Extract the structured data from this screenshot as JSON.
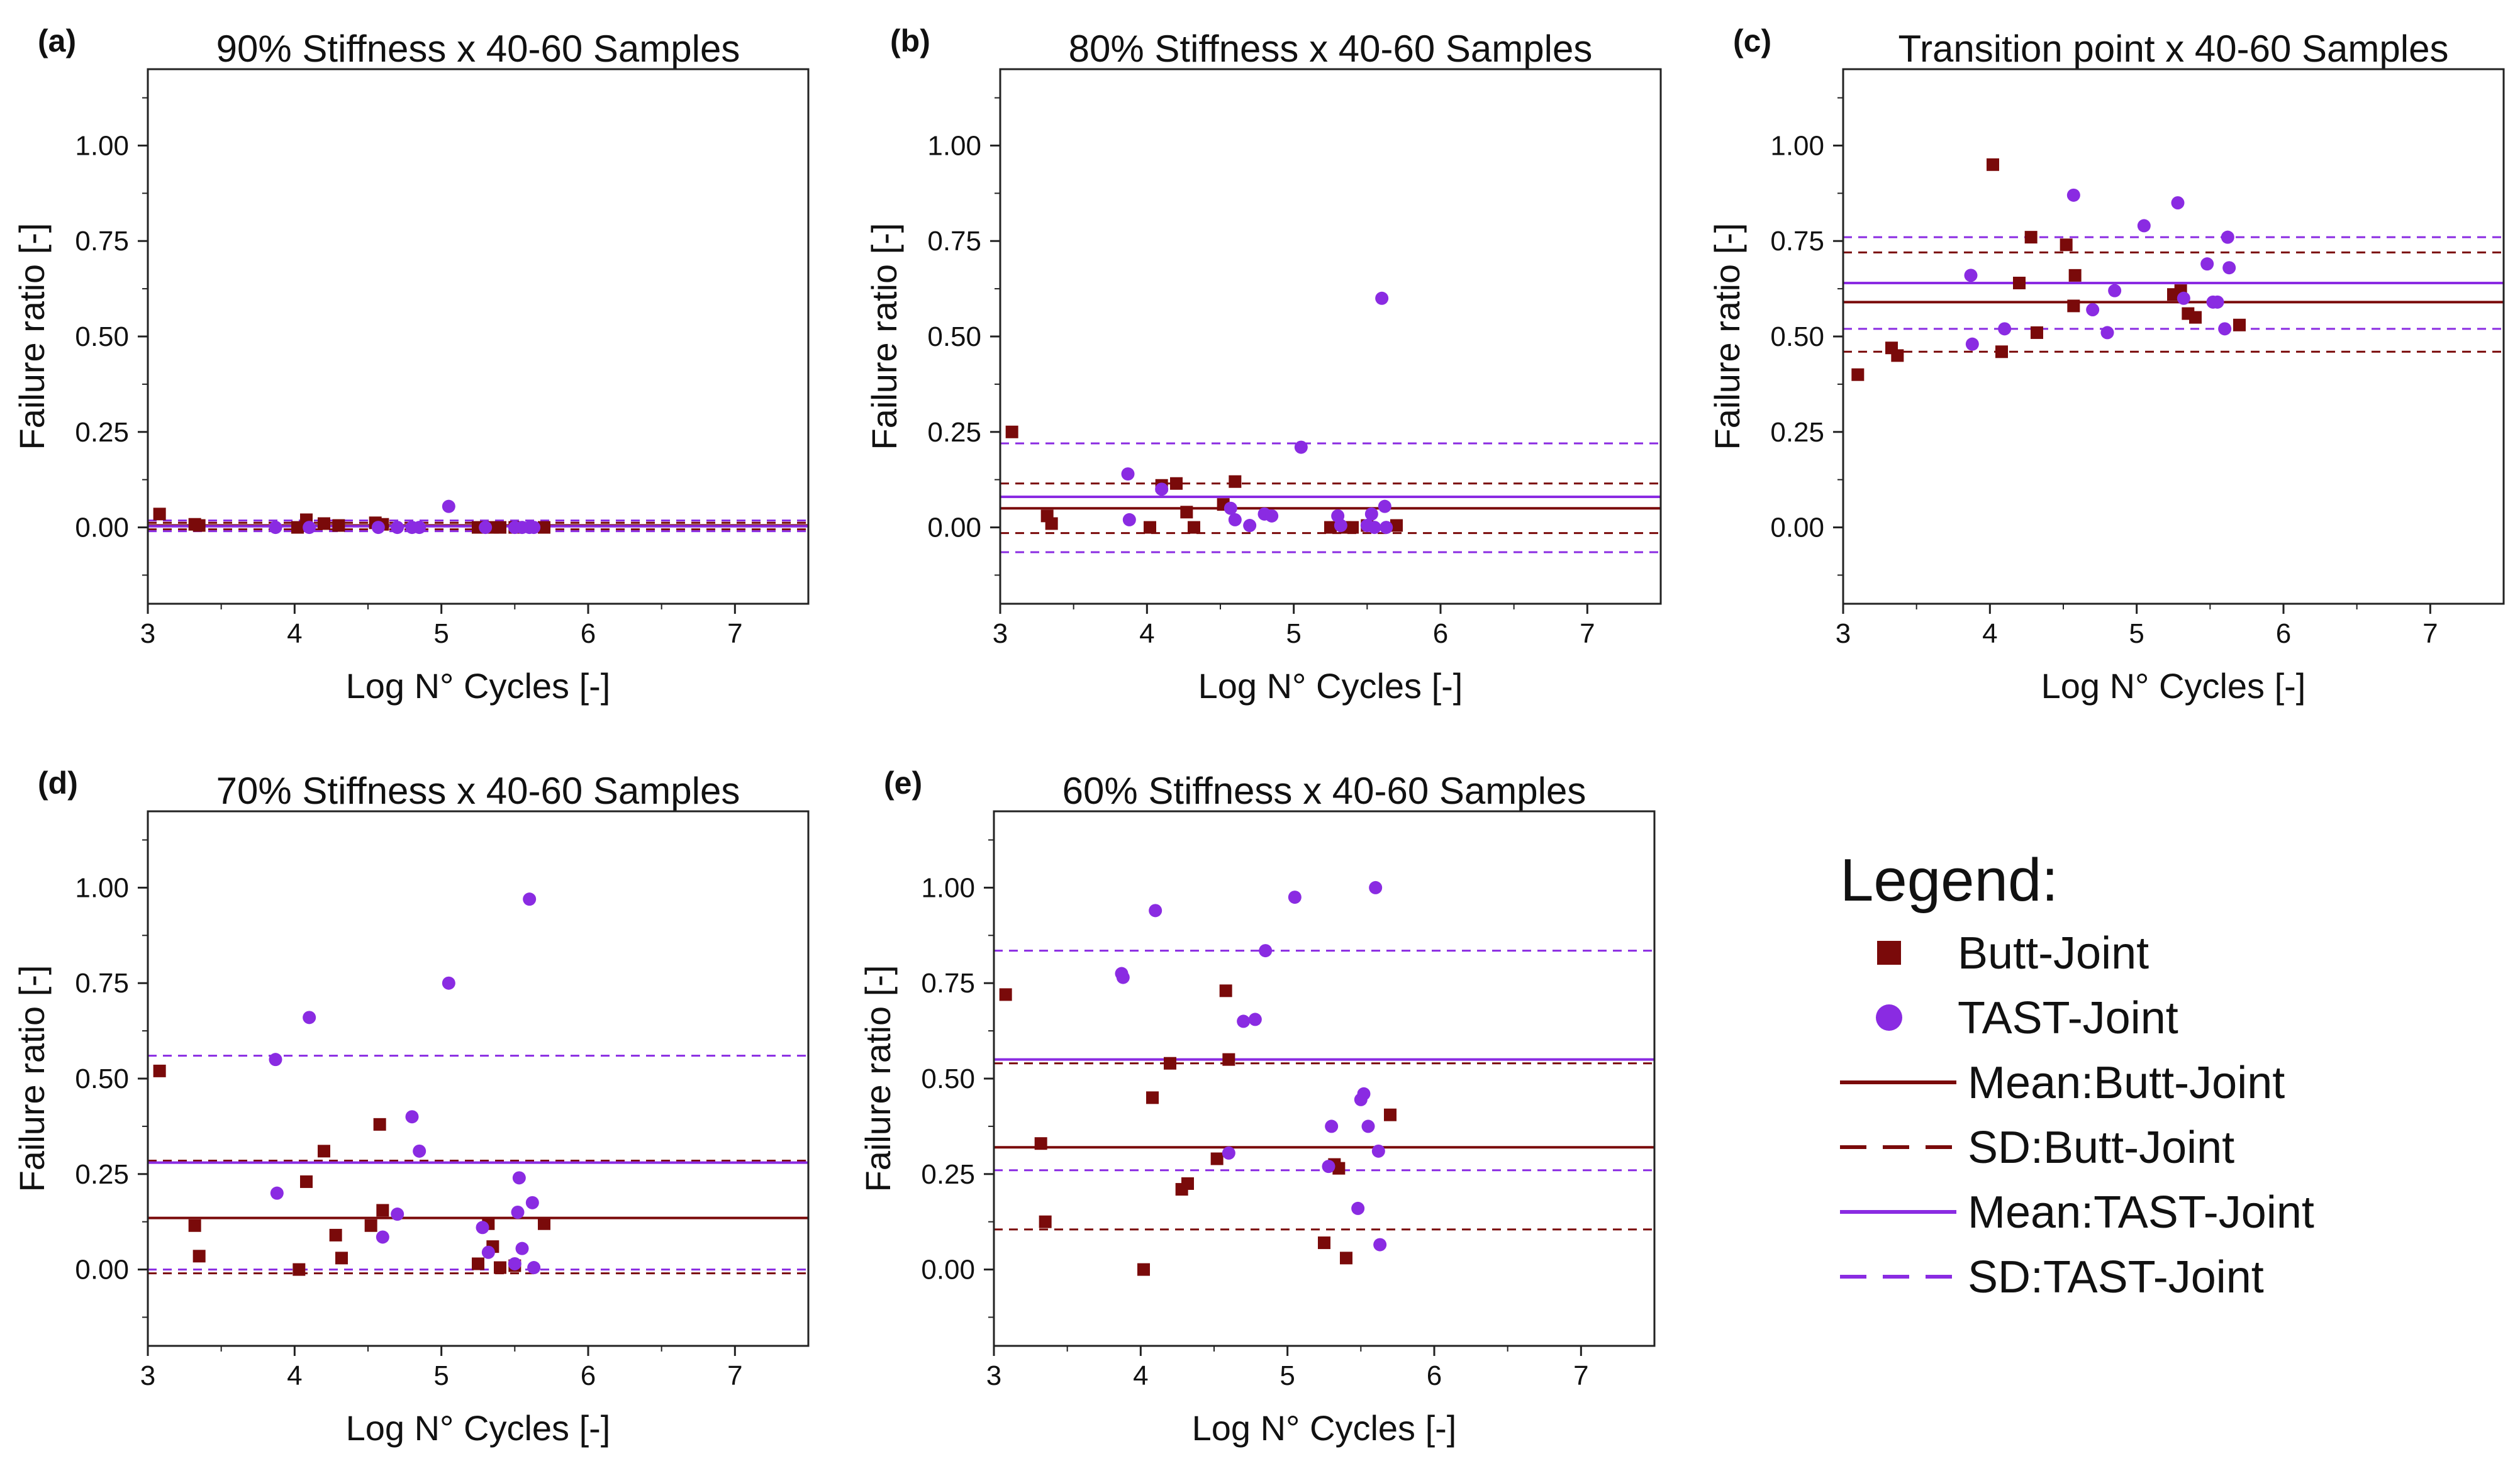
{
  "colors": {
    "butt": "#7a0a0a",
    "tast": "#8a2be2",
    "axis": "#222222"
  },
  "legend": {
    "title": "Legend:",
    "entries": [
      {
        "label": "Butt-Joint",
        "kind": "square",
        "series": "butt"
      },
      {
        "label": "TAST-Joint",
        "kind": "circle",
        "series": "tast"
      },
      {
        "label": "Mean:Butt-Joint",
        "kind": "solid",
        "series": "butt"
      },
      {
        "label": "SD:Butt-Joint",
        "kind": "dashed",
        "series": "butt"
      },
      {
        "label": "Mean:TAST-Joint",
        "kind": "solid",
        "series": "tast"
      },
      {
        "label": "SD:TAST-Joint",
        "kind": "dashed",
        "series": "tast"
      }
    ]
  },
  "chart_data": [
    {
      "id": "a",
      "panel_label": "(a)",
      "type": "scatter",
      "title": "90% Stiffness x 40-60 Samples",
      "xlabel": "Log N° Cycles [-]",
      "ylabel": "Failure ratio [-]",
      "xlim": [
        3,
        7.5
      ],
      "ylim": [
        -0.2,
        1.2
      ],
      "xticks": [
        "3",
        "4",
        "5",
        "6",
        "7"
      ],
      "yticks": [
        "0.00",
        "0.25",
        "0.50",
        "0.75",
        "1.00"
      ],
      "series": [
        {
          "name": "Butt-Joint",
          "marker": "square",
          "points": [
            [
              3.08,
              0.035
            ],
            [
              3.32,
              0.008
            ],
            [
              3.35,
              0.005
            ],
            [
              4.02,
              0.0
            ],
            [
              4.08,
              0.02
            ],
            [
              4.2,
              0.01
            ],
            [
              4.3,
              0.005
            ],
            [
              4.55,
              0.012
            ],
            [
              4.6,
              0.008
            ],
            [
              5.25,
              0.0
            ],
            [
              5.35,
              0.0
            ],
            [
              5.4,
              0.0
            ],
            [
              5.5,
              0.0
            ],
            [
              5.7,
              0.0
            ]
          ]
        },
        {
          "name": "TAST-Joint",
          "marker": "circle",
          "points": [
            [
              3.87,
              0.0
            ],
            [
              4.1,
              0.0
            ],
            [
              4.57,
              0.0
            ],
            [
              4.7,
              0.0
            ],
            [
              4.8,
              0.0
            ],
            [
              4.85,
              0.0
            ],
            [
              5.05,
              0.055
            ],
            [
              5.3,
              0.0
            ],
            [
              5.5,
              0.0
            ],
            [
              5.55,
              0.0
            ],
            [
              5.6,
              0.0
            ],
            [
              5.63,
              0.0
            ]
          ]
        }
      ],
      "lines": {
        "butt_mean": 0.005,
        "butt_sd": [
          -0.005,
          0.012
        ],
        "tast_mean": 0.003,
        "tast_sd": [
          -0.01,
          0.018
        ]
      }
    },
    {
      "id": "b",
      "panel_label": "(b)",
      "type": "scatter",
      "title": "80% Stiffness x 40-60 Samples",
      "xlabel": "Log N° Cycles [-]",
      "ylabel": "Failure ratio [-]",
      "xlim": [
        3,
        7.5
      ],
      "ylim": [
        -0.2,
        1.2
      ],
      "xticks": [
        "3",
        "4",
        "5",
        "6",
        "7"
      ],
      "yticks": [
        "0.00",
        "0.25",
        "0.50",
        "0.75",
        "1.00"
      ],
      "series": [
        {
          "name": "Butt-Joint",
          "marker": "square",
          "points": [
            [
              3.08,
              0.25
            ],
            [
              3.32,
              0.03
            ],
            [
              3.35,
              0.01
            ],
            [
              4.02,
              0.0
            ],
            [
              4.1,
              0.11
            ],
            [
              4.2,
              0.115
            ],
            [
              4.27,
              0.04
            ],
            [
              4.32,
              0.0
            ],
            [
              4.52,
              0.06
            ],
            [
              4.6,
              0.12
            ],
            [
              5.25,
              0.0
            ],
            [
              5.35,
              0.0
            ],
            [
              5.4,
              0.0
            ],
            [
              5.5,
              0.005
            ],
            [
              5.7,
              0.005
            ]
          ]
        },
        {
          "name": "TAST-Joint",
          "marker": "circle",
          "points": [
            [
              3.87,
              0.14
            ],
            [
              3.88,
              0.02
            ],
            [
              4.1,
              0.1
            ],
            [
              4.57,
              0.05
            ],
            [
              4.6,
              0.02
            ],
            [
              4.7,
              0.005
            ],
            [
              4.8,
              0.035
            ],
            [
              4.85,
              0.03
            ],
            [
              5.05,
              0.21
            ],
            [
              5.3,
              0.03
            ],
            [
              5.32,
              0.005
            ],
            [
              5.5,
              0.005
            ],
            [
              5.53,
              0.035
            ],
            [
              5.55,
              0.0
            ],
            [
              5.6,
              0.6
            ],
            [
              5.62,
              0.055
            ],
            [
              5.63,
              0.0
            ]
          ]
        }
      ],
      "lines": {
        "butt_mean": 0.05,
        "butt_sd": [
          -0.015,
          0.115
        ],
        "tast_mean": 0.08,
        "tast_sd": [
          -0.065,
          0.22
        ]
      }
    },
    {
      "id": "c",
      "panel_label": "(c)",
      "type": "scatter",
      "title": "Transition point x 40-60 Samples",
      "xlabel": "Log N° Cycles [-]",
      "ylabel": "Failure ratio [-]",
      "xlim": [
        3,
        7.5
      ],
      "ylim": [
        -0.2,
        1.2
      ],
      "xticks": [
        "3",
        "4",
        "5",
        "6",
        "7"
      ],
      "yticks": [
        "0.00",
        "0.25",
        "0.50",
        "0.75",
        "1.00"
      ],
      "series": [
        {
          "name": "Butt-Joint",
          "marker": "square",
          "points": [
            [
              3.1,
              0.4
            ],
            [
              3.33,
              0.47
            ],
            [
              3.37,
              0.45
            ],
            [
              4.02,
              0.95
            ],
            [
              4.08,
              0.46
            ],
            [
              4.2,
              0.64
            ],
            [
              4.28,
              0.76
            ],
            [
              4.32,
              0.51
            ],
            [
              4.52,
              0.74
            ],
            [
              4.57,
              0.58
            ],
            [
              4.58,
              0.66
            ],
            [
              5.25,
              0.61
            ],
            [
              5.3,
              0.62
            ],
            [
              5.35,
              0.56
            ],
            [
              5.4,
              0.55
            ],
            [
              5.7,
              0.53
            ]
          ]
        },
        {
          "name": "TAST-Joint",
          "marker": "circle",
          "points": [
            [
              3.87,
              0.66
            ],
            [
              3.88,
              0.48
            ],
            [
              4.1,
              0.52
            ],
            [
              4.57,
              0.87
            ],
            [
              4.7,
              0.57
            ],
            [
              4.8,
              0.51
            ],
            [
              4.85,
              0.62
            ],
            [
              5.05,
              0.79
            ],
            [
              5.28,
              0.85
            ],
            [
              5.32,
              0.6
            ],
            [
              5.48,
              0.69
            ],
            [
              5.52,
              0.59
            ],
            [
              5.55,
              0.59
            ],
            [
              5.6,
              0.52
            ],
            [
              5.62,
              0.76
            ],
            [
              5.63,
              0.68
            ]
          ]
        }
      ],
      "lines": {
        "butt_mean": 0.59,
        "butt_sd": [
          0.46,
          0.72
        ],
        "tast_mean": 0.64,
        "tast_sd": [
          0.52,
          0.76
        ]
      }
    },
    {
      "id": "d",
      "panel_label": "(d)",
      "type": "scatter",
      "title": "70% Stiffness x 40-60 Samples",
      "xlabel": "Log N° Cycles [-]",
      "ylabel": "Failure ratio [-]",
      "xlim": [
        3,
        7.5
      ],
      "ylim": [
        -0.2,
        1.2
      ],
      "xticks": [
        "3",
        "4",
        "5",
        "6",
        "7"
      ],
      "yticks": [
        "0.00",
        "0.25",
        "0.50",
        "0.75",
        "1.00"
      ],
      "series": [
        {
          "name": "Butt-Joint",
          "marker": "square",
          "points": [
            [
              3.08,
              0.52
            ],
            [
              3.32,
              0.115
            ],
            [
              3.35,
              0.035
            ],
            [
              4.03,
              0.0
            ],
            [
              4.08,
              0.23
            ],
            [
              4.2,
              0.31
            ],
            [
              4.28,
              0.09
            ],
            [
              4.32,
              0.03
            ],
            [
              4.52,
              0.115
            ],
            [
              4.58,
              0.38
            ],
            [
              4.6,
              0.155
            ],
            [
              5.25,
              0.015
            ],
            [
              5.32,
              0.12
            ],
            [
              5.35,
              0.06
            ],
            [
              5.4,
              0.005
            ],
            [
              5.5,
              0.01
            ],
            [
              5.7,
              0.12
            ]
          ]
        },
        {
          "name": "TAST-Joint",
          "marker": "circle",
          "points": [
            [
              3.87,
              0.55
            ],
            [
              3.88,
              0.2
            ],
            [
              4.1,
              0.66
            ],
            [
              4.6,
              0.085
            ],
            [
              4.7,
              0.145
            ],
            [
              4.8,
              0.4
            ],
            [
              4.85,
              0.31
            ],
            [
              5.05,
              0.75
            ],
            [
              5.28,
              0.11
            ],
            [
              5.32,
              0.045
            ],
            [
              5.5,
              0.015
            ],
            [
              5.52,
              0.15
            ],
            [
              5.53,
              0.24
            ],
            [
              5.55,
              0.055
            ],
            [
              5.6,
              0.97
            ],
            [
              5.62,
              0.175
            ],
            [
              5.63,
              0.005
            ]
          ]
        }
      ],
      "lines": {
        "butt_mean": 0.135,
        "butt_sd": [
          -0.01,
          0.285
        ],
        "tast_mean": 0.28,
        "tast_sd": [
          0.0,
          0.56
        ]
      }
    },
    {
      "id": "e",
      "panel_label": "(e)",
      "type": "scatter",
      "title": "60% Stiffness x 40-60 Samples",
      "xlabel": "Log N° Cycles [-]",
      "ylabel": "Failure ratio [-]",
      "xlim": [
        3,
        7.5
      ],
      "ylim": [
        -0.2,
        1.2
      ],
      "xticks": [
        "3",
        "4",
        "5",
        "6",
        "7"
      ],
      "yticks": [
        "0.00",
        "0.25",
        "0.50",
        "0.75",
        "1.00"
      ],
      "series": [
        {
          "name": "Butt-Joint",
          "marker": "square",
          "points": [
            [
              3.08,
              0.72
            ],
            [
              3.32,
              0.33
            ],
            [
              3.35,
              0.125
            ],
            [
              4.02,
              0.0
            ],
            [
              4.08,
              0.45
            ],
            [
              4.2,
              0.54
            ],
            [
              4.28,
              0.21
            ],
            [
              4.32,
              0.225
            ],
            [
              4.52,
              0.29
            ],
            [
              4.58,
              0.73
            ],
            [
              4.6,
              0.55
            ],
            [
              5.25,
              0.07
            ],
            [
              5.32,
              0.275
            ],
            [
              5.35,
              0.265
            ],
            [
              5.4,
              0.03
            ],
            [
              5.7,
              0.405
            ]
          ]
        },
        {
          "name": "TAST-Joint",
          "marker": "circle",
          "points": [
            [
              3.87,
              0.775
            ],
            [
              3.88,
              0.765
            ],
            [
              4.1,
              0.94
            ],
            [
              4.6,
              0.305
            ],
            [
              4.7,
              0.65
            ],
            [
              4.78,
              0.655
            ],
            [
              4.85,
              0.835
            ],
            [
              5.05,
              0.975
            ],
            [
              5.28,
              0.27
            ],
            [
              5.3,
              0.375
            ],
            [
              5.48,
              0.16
            ],
            [
              5.5,
              0.445
            ],
            [
              5.52,
              0.46
            ],
            [
              5.55,
              0.375
            ],
            [
              5.6,
              1.0
            ],
            [
              5.62,
              0.31
            ],
            [
              5.63,
              0.065
            ]
          ]
        }
      ],
      "lines": {
        "butt_mean": 0.32,
        "butt_sd": [
          0.105,
          0.54
        ],
        "tast_mean": 0.55,
        "tast_sd": [
          0.26,
          0.835
        ]
      }
    }
  ]
}
